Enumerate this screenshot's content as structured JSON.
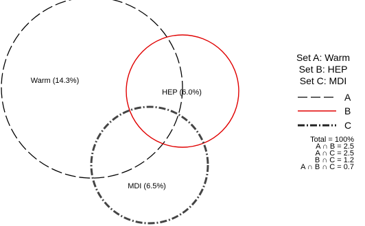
{
  "diagram": {
    "sets": [
      {
        "key": "A",
        "label": "Warm (14.3%)",
        "legend": "Set A:  Warm",
        "line_label": "A",
        "color": "#000000",
        "style": "dashed"
      },
      {
        "key": "B",
        "label": "HEP (6.0%)",
        "legend": "Set B:  HEP",
        "line_label": "B",
        "color": "#e00000",
        "style": "solid"
      },
      {
        "key": "C",
        "label": "MDI (6.5%)",
        "legend": "Set C:  MDI",
        "line_label": "C",
        "color": "#444444",
        "style": "dashdot"
      }
    ],
    "stats": [
      "Total = 100%",
      "A ∩ B = 2.5",
      "A ∩ C = 2.5",
      "B ∩ C = 1.2",
      "A ∩ B ∩ C = 0.7"
    ]
  }
}
